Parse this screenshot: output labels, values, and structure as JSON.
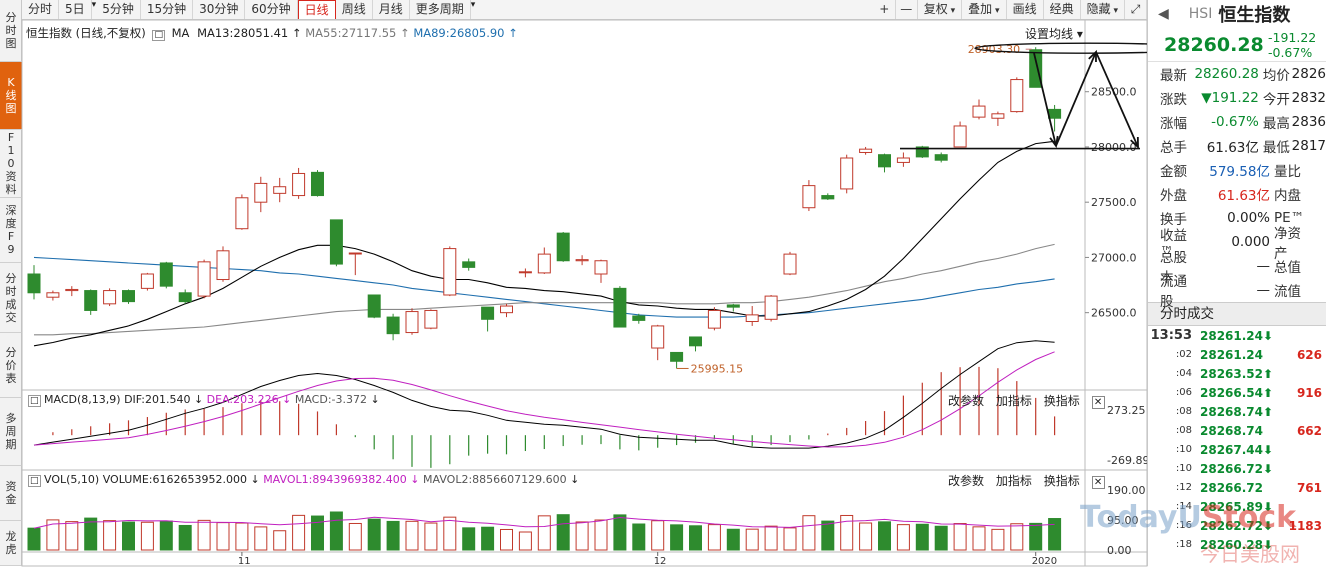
{
  "left_nav": [
    {
      "label": "分时图",
      "active": false
    },
    {
      "label": "K线图",
      "active": true
    },
    {
      "label": "F10资料",
      "active": false
    },
    {
      "label": "深度F9",
      "active": false
    },
    {
      "label": "分时成交",
      "active": false
    },
    {
      "label": "分价表",
      "active": false
    },
    {
      "label": "多周期",
      "active": false
    },
    {
      "label": "资金",
      "active": false
    },
    {
      "label": "龙虎",
      "active": false
    }
  ],
  "toolbar": {
    "periods": [
      "分时",
      "5日",
      "5分钟",
      "15分钟",
      "30分钟",
      "60分钟",
      "日线",
      "周线",
      "月线",
      "更多周期"
    ],
    "active_period": "日线",
    "right_buttons": [
      "+",
      "—",
      "复权",
      "叠加",
      "画线",
      "经典",
      "隐藏"
    ],
    "expand_icon": "expand-icon"
  },
  "chart": {
    "info": {
      "title": "恒生指数 (日线,不复权)",
      "ma_label": "MA",
      "ma13": "MA13:28051.41",
      "ma55": "MA55:27117.55",
      "ma89": "MA89:26805.90"
    },
    "set_ma_label": "设置均线",
    "price_axis": [
      "28500.0",
      "28000.0",
      "27500.0",
      "27000.0",
      "26500.0"
    ],
    "high_label": "28903.30",
    "low_label": "25995.15",
    "x_axis_labels": [
      "11",
      "12",
      "2020"
    ],
    "colors": {
      "up": "#c0392b",
      "down": "#2e8b2e",
      "ma13": "#000000",
      "ma55": "#888888",
      "ma89": "#1f6fae"
    },
    "macd": {
      "header": [
        "MACD(8,13,9)",
        "DIF:201.540",
        "DEA:203.226",
        "MACD:-3.372"
      ],
      "axis": [
        "273.25",
        "-269.89"
      ]
    },
    "vol": {
      "header": [
        "VOL(5,10)",
        "VOLUME:6162653952.000",
        "MAVOL1:8943969382.400",
        "MAVOL2:8856607129.600"
      ],
      "axis": [
        "190.00",
        "95.00",
        "0.00"
      ]
    },
    "panel_buttons": [
      "改参数",
      "加指标",
      "换指标"
    ]
  },
  "chart_data": {
    "type": "candlestick",
    "candles": [
      {
        "o": 26850,
        "h": 26930,
        "l": 26620,
        "c": 26680
      },
      {
        "o": 26640,
        "h": 26700,
        "l": 26610,
        "c": 26680
      },
      {
        "o": 26700,
        "h": 26740,
        "l": 26650,
        "c": 26710
      },
      {
        "o": 26700,
        "h": 26710,
        "l": 26480,
        "c": 26520
      },
      {
        "o": 26580,
        "h": 26720,
        "l": 26560,
        "c": 26700
      },
      {
        "o": 26700,
        "h": 26710,
        "l": 26580,
        "c": 26600
      },
      {
        "o": 26720,
        "h": 26860,
        "l": 26700,
        "c": 26850
      },
      {
        "o": 26950,
        "h": 26960,
        "l": 26720,
        "c": 26740
      },
      {
        "o": 26680,
        "h": 26710,
        "l": 26580,
        "c": 26600
      },
      {
        "o": 26650,
        "h": 26980,
        "l": 26630,
        "c": 26960
      },
      {
        "o": 26800,
        "h": 27100,
        "l": 26780,
        "c": 27060
      },
      {
        "o": 27260,
        "h": 27570,
        "l": 27250,
        "c": 27540
      },
      {
        "o": 27500,
        "h": 27730,
        "l": 27410,
        "c": 27670
      },
      {
        "o": 27580,
        "h": 27720,
        "l": 27500,
        "c": 27640
      },
      {
        "o": 27560,
        "h": 27810,
        "l": 27530,
        "c": 27760
      },
      {
        "o": 27770,
        "h": 27790,
        "l": 27550,
        "c": 27560
      },
      {
        "o": 27340,
        "h": 27340,
        "l": 26920,
        "c": 26940
      },
      {
        "o": 27040,
        "h": 27040,
        "l": 26840,
        "c": 27040
      },
      {
        "o": 26660,
        "h": 26660,
        "l": 26450,
        "c": 26460
      },
      {
        "o": 26460,
        "h": 26490,
        "l": 26250,
        "c": 26310
      },
      {
        "o": 26320,
        "h": 26540,
        "l": 26300,
        "c": 26510
      },
      {
        "o": 26360,
        "h": 26530,
        "l": 26350,
        "c": 26520
      },
      {
        "o": 26660,
        "h": 27100,
        "l": 26650,
        "c": 27080
      },
      {
        "o": 26960,
        "h": 26990,
        "l": 26880,
        "c": 26910
      },
      {
        "o": 26550,
        "h": 26550,
        "l": 26330,
        "c": 26440
      },
      {
        "o": 26500,
        "h": 26580,
        "l": 26460,
        "c": 26560
      },
      {
        "o": 26870,
        "h": 26900,
        "l": 26820,
        "c": 26870
      },
      {
        "o": 26860,
        "h": 27090,
        "l": 26850,
        "c": 27030
      },
      {
        "o": 27220,
        "h": 27230,
        "l": 26960,
        "c": 26970
      },
      {
        "o": 26970,
        "h": 27020,
        "l": 26930,
        "c": 26980
      },
      {
        "o": 26850,
        "h": 26980,
        "l": 26770,
        "c": 26970
      },
      {
        "o": 26720,
        "h": 26740,
        "l": 26370,
        "c": 26370
      },
      {
        "o": 26470,
        "h": 26490,
        "l": 26400,
        "c": 26430
      },
      {
        "o": 26180,
        "h": 26390,
        "l": 26070,
        "c": 26380
      },
      {
        "o": 26140,
        "h": 26140,
        "l": 25995,
        "c": 26060
      },
      {
        "o": 26280,
        "h": 26280,
        "l": 26150,
        "c": 26200
      },
      {
        "o": 26360,
        "h": 26550,
        "l": 26340,
        "c": 26520
      },
      {
        "o": 26570,
        "h": 26580,
        "l": 26510,
        "c": 26550
      },
      {
        "o": 26420,
        "h": 26560,
        "l": 26380,
        "c": 26480
      },
      {
        "o": 26440,
        "h": 26660,
        "l": 26420,
        "c": 26650
      },
      {
        "o": 26850,
        "h": 27050,
        "l": 26840,
        "c": 27030
      },
      {
        "o": 27450,
        "h": 27700,
        "l": 27420,
        "c": 27650
      },
      {
        "o": 27560,
        "h": 27580,
        "l": 27520,
        "c": 27530
      },
      {
        "o": 27620,
        "h": 27930,
        "l": 27580,
        "c": 27900
      },
      {
        "o": 27950,
        "h": 28000,
        "l": 27930,
        "c": 27980
      },
      {
        "o": 27930,
        "h": 27940,
        "l": 27770,
        "c": 27820
      },
      {
        "o": 27860,
        "h": 27950,
        "l": 27820,
        "c": 27900
      },
      {
        "o": 28000,
        "h": 28010,
        "l": 27900,
        "c": 27910
      },
      {
        "o": 27930,
        "h": 27950,
        "l": 27860,
        "c": 27880
      },
      {
        "o": 28000,
        "h": 28230,
        "l": 28000,
        "c": 28190
      },
      {
        "o": 28270,
        "h": 28430,
        "l": 28250,
        "c": 28370
      },
      {
        "o": 28260,
        "h": 28320,
        "l": 28190,
        "c": 28300
      },
      {
        "o": 28320,
        "h": 28630,
        "l": 28310,
        "c": 28610
      },
      {
        "o": 28880,
        "h": 28903,
        "l": 28540,
        "c": 28540
      },
      {
        "o": 28340,
        "h": 28380,
        "l": 28140,
        "c": 28260
      }
    ],
    "ma13": [
      26200,
      26230,
      26270,
      26300,
      26340,
      26380,
      26440,
      26510,
      26580,
      26640,
      26720,
      26820,
      26920,
      27000,
      27070,
      27110,
      27110,
      27080,
      27030,
      26960,
      26880,
      26830,
      26800,
      26800,
      26770,
      26730,
      26720,
      26700,
      26690,
      26670,
      26650,
      26600,
      26570,
      26560,
      26540,
      26530,
      26530,
      26500,
      26470,
      26470,
      26490,
      26510,
      26560,
      26620,
      26710,
      26830,
      26990,
      27170,
      27350,
      27530,
      27700,
      27860,
      27960,
      28030,
      28051.41
    ],
    "ma55": [
      26300,
      26300,
      26310,
      26310,
      26320,
      26330,
      26340,
      26350,
      26360,
      26370,
      26390,
      26410,
      26430,
      26450,
      26470,
      26490,
      26510,
      26520,
      26530,
      26530,
      26530,
      26540,
      26550,
      26560,
      26570,
      26580,
      26590,
      26590,
      26590,
      26590,
      26590,
      26590,
      26590,
      26590,
      26580,
      26580,
      26580,
      26590,
      26590,
      26600,
      26620,
      26640,
      26670,
      26700,
      26740,
      26780,
      26810,
      26850,
      26880,
      26920,
      26960,
      26990,
      27030,
      27080,
      27117.55
    ],
    "ma89": [
      27000,
      26990,
      26980,
      26970,
      26960,
      26950,
      26940,
      26930,
      26920,
      26910,
      26900,
      26890,
      26880,
      26860,
      26850,
      26830,
      26810,
      26790,
      26770,
      26750,
      26720,
      26700,
      26680,
      26660,
      26640,
      26620,
      26600,
      26580,
      26560,
      26540,
      26520,
      26500,
      26480,
      26470,
      26460,
      26460,
      26460,
      26460,
      26470,
      26480,
      26490,
      26500,
      26520,
      26540,
      26560,
      26580,
      26600,
      26620,
      26650,
      26680,
      26710,
      26730,
      26760,
      26780,
      26805.9
    ],
    "macd_range": [
      -269.89,
      273.25
    ],
    "vol_axis_max": 190.0
  },
  "right_panel": {
    "code": "HSI",
    "name": "恒生指数",
    "price": "28260.28",
    "change": "-191.22",
    "change_pct": "-0.67%",
    "rows": [
      {
        "l1": "最新",
        "v1": "28260.28",
        "c1": "green",
        "l2": "均价",
        "v2": "2826"
      },
      {
        "l1": "涨跌",
        "v1": "▼191.22",
        "c1": "green",
        "l2": "今开",
        "v2": "2832"
      },
      {
        "l1": "涨幅",
        "v1": "-0.67%",
        "c1": "green",
        "l2": "最高",
        "v2": "2836"
      },
      {
        "l1": "总手",
        "v1": "61.63亿",
        "c1": "",
        "l2": "最低",
        "v2": "2817"
      },
      {
        "l1": "金额",
        "v1": "579.58亿",
        "c1": "blue",
        "l2": "量比",
        "v2": ""
      },
      {
        "l1": "外盘",
        "v1": "61.63亿",
        "c1": "red",
        "l2": "内盘",
        "v2": ""
      },
      {
        "l1": "换手",
        "v1": "0.00%",
        "c1": "",
        "l2": "PE™",
        "v2": ""
      },
      {
        "l1": "收益™",
        "v1": "0.000",
        "c1": "",
        "l2": "净资产",
        "v2": ""
      },
      {
        "l1": "总股本",
        "v1": "—",
        "c1": "",
        "l2": "总值",
        "v2": ""
      },
      {
        "l1": "流通股",
        "v1": "—",
        "c1": "",
        "l2": "流值",
        "v2": ""
      }
    ],
    "ticks_header": "分时成交",
    "ticks": [
      {
        "time": "13:53",
        "price": "28261.24⬇",
        "vol": "",
        "dir": "down"
      },
      {
        "time": ":02",
        "price": "28261.24",
        "vol": "626",
        "dir": "down"
      },
      {
        "time": ":04",
        "price": "28263.52⬆",
        "vol": "",
        "dir": "down"
      },
      {
        "time": ":06",
        "price": "28266.54⬆",
        "vol": "916",
        "dir": "down"
      },
      {
        "time": ":08",
        "price": "28268.74⬆",
        "vol": "",
        "dir": "down"
      },
      {
        "time": ":08",
        "price": "28268.74",
        "vol": "662",
        "dir": "down"
      },
      {
        "time": ":10",
        "price": "28267.44⬇",
        "vol": "",
        "dir": "down"
      },
      {
        "time": ":10",
        "price": "28266.72⬇",
        "vol": "",
        "dir": "down"
      },
      {
        "time": ":12",
        "price": "28266.72",
        "vol": "761",
        "dir": "down"
      },
      {
        "time": ":14",
        "price": "28265.89⬇",
        "vol": "",
        "dir": "down"
      },
      {
        "time": ":16",
        "price": "28262.72⬇",
        "vol": "1183",
        "dir": "down"
      },
      {
        "time": ":18",
        "price": "28260.28⬇",
        "vol": "",
        "dir": "down"
      }
    ]
  },
  "watermark": {
    "text1": "TodayU",
    "text2": "Stock",
    "text3": "今日美股网"
  }
}
